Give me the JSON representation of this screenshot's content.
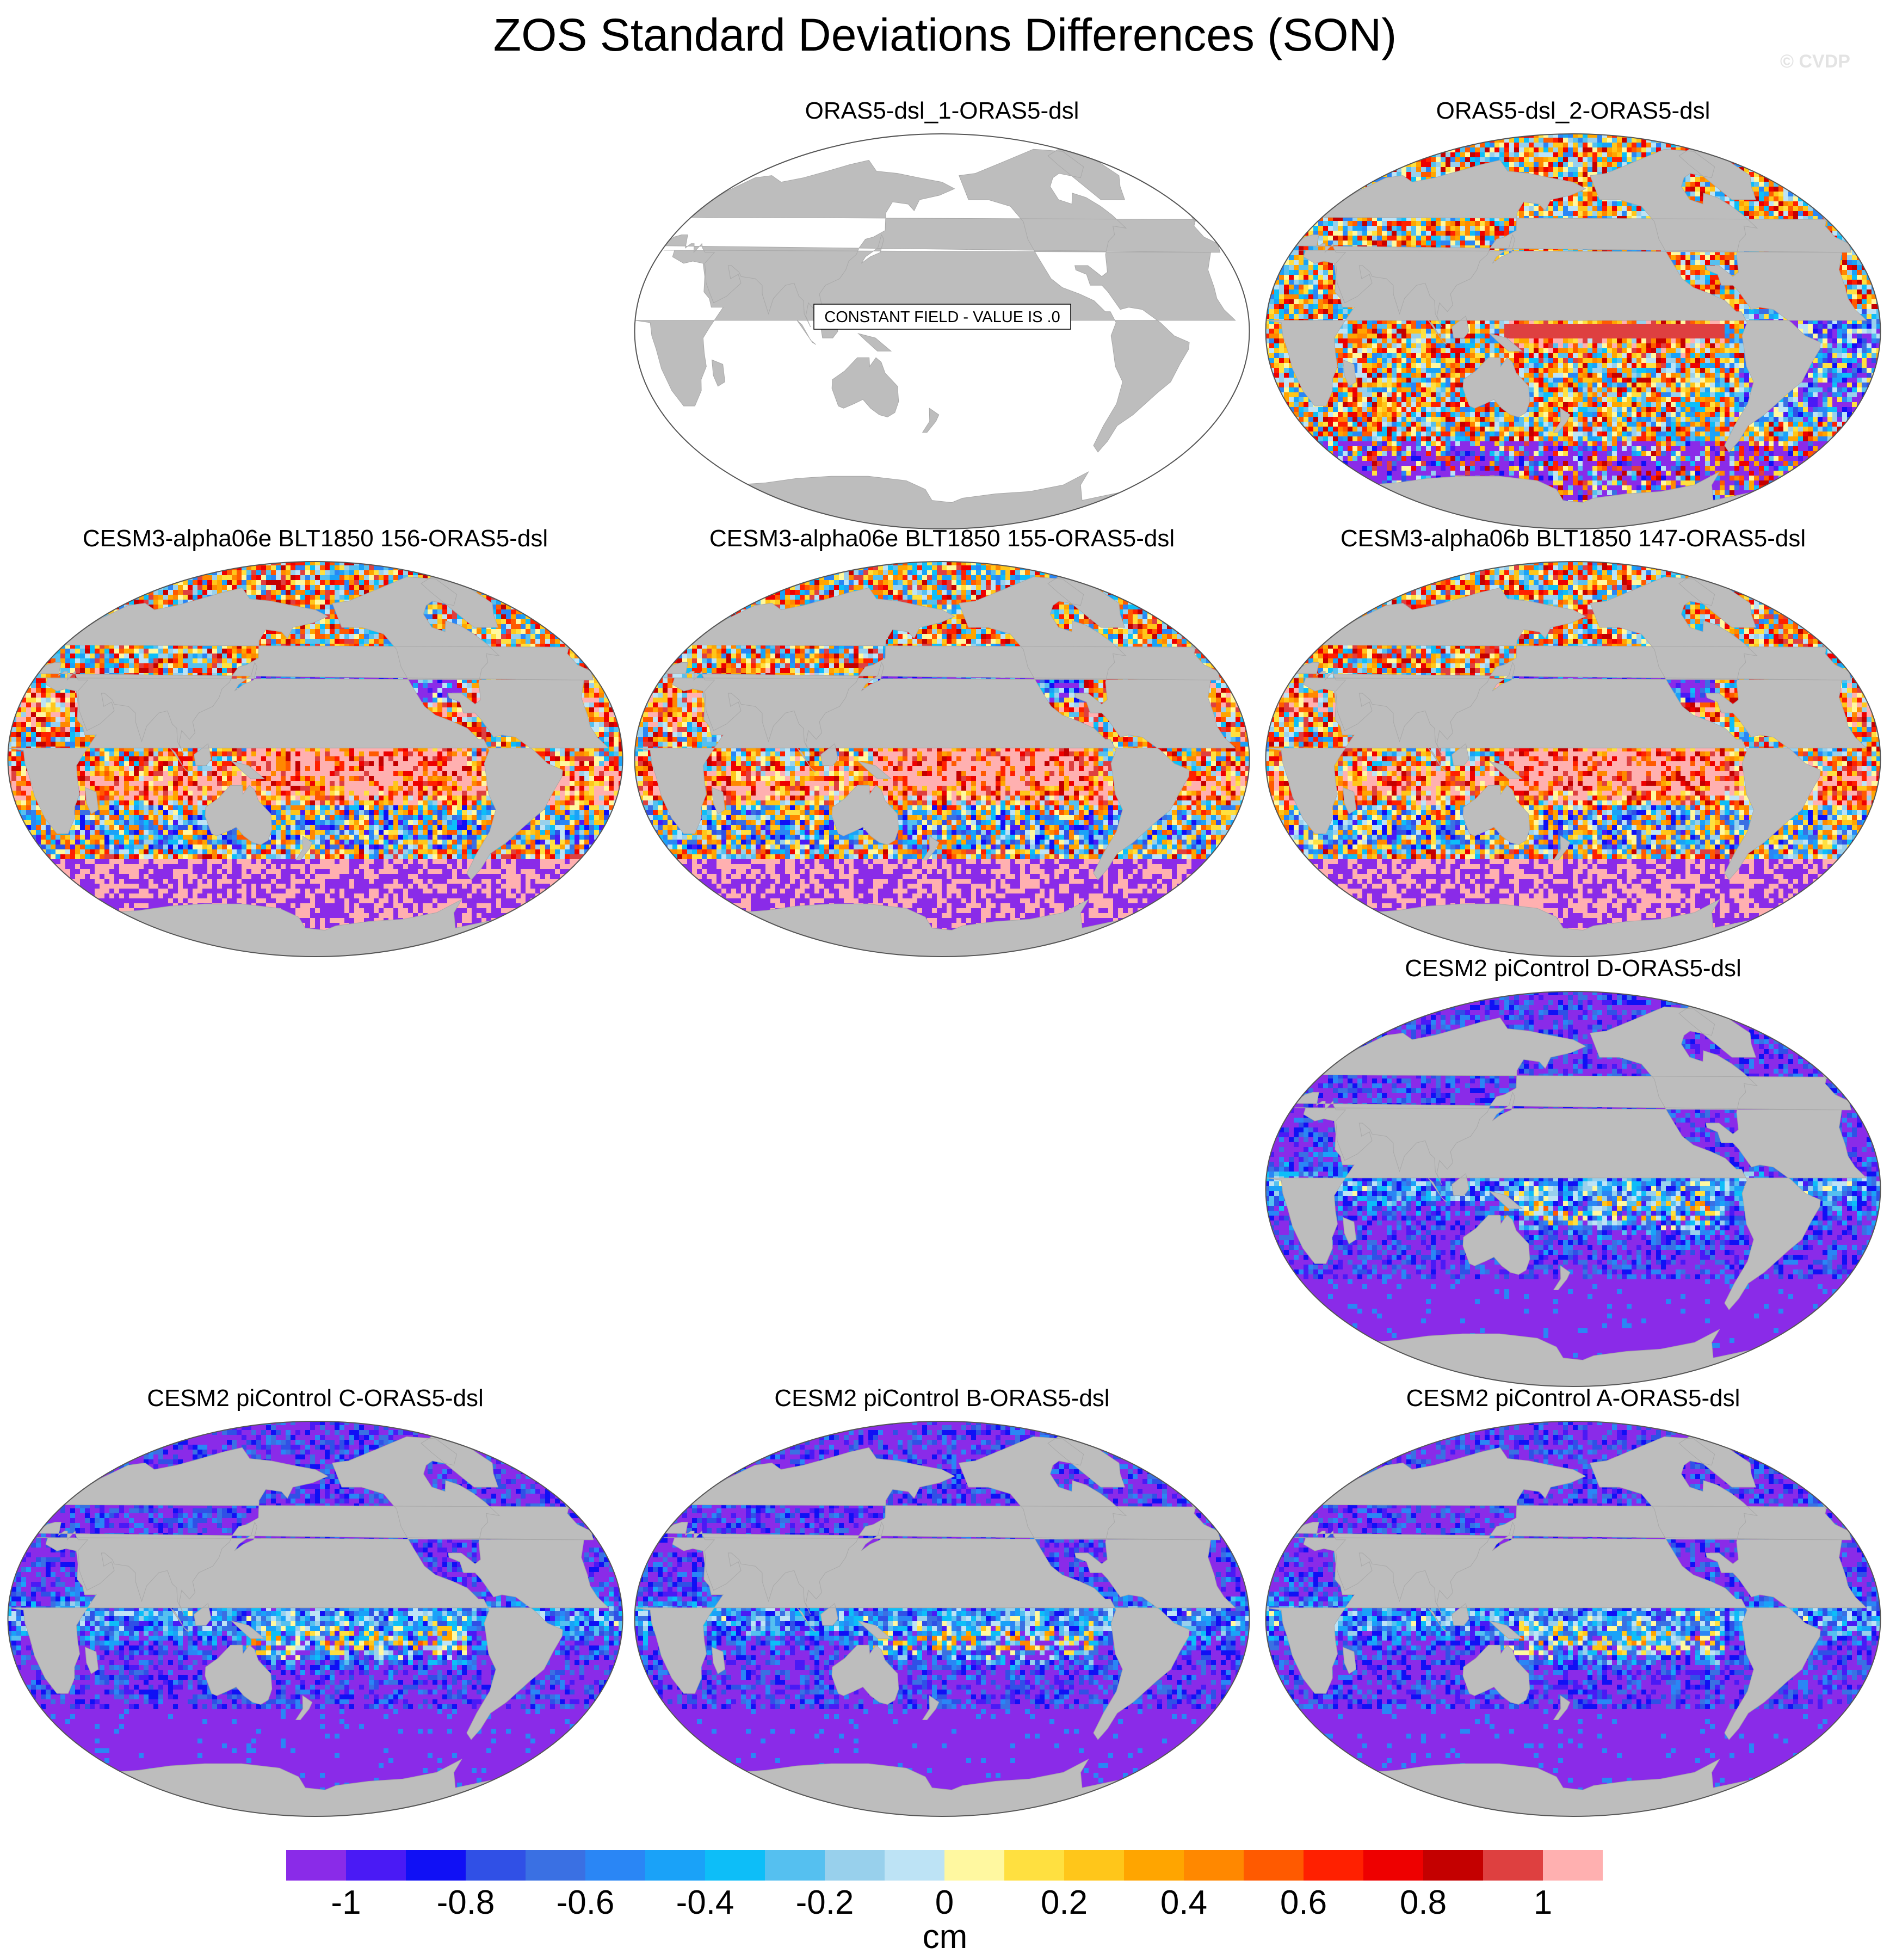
{
  "title": "ZOS Standard Deviations Differences (SON)",
  "watermark": "© CVDP",
  "panels": [
    {
      "title": "ORAS5-dsl_1-ORAS5-dsl",
      "field": "constant",
      "note": "CONSTANT FIELD - VALUE IS .0"
    },
    {
      "title": "ORAS5-dsl_2-ORAS5-dsl",
      "field": "mixed"
    },
    {
      "title": "CESM3-alpha06e BLT1850 156-ORAS5-dsl",
      "field": "positive"
    },
    {
      "title": "CESM3-alpha06e BLT1850 155-ORAS5-dsl",
      "field": "positive"
    },
    {
      "title": "CESM3-alpha06b BLT1850 147-ORAS5-dsl",
      "field": "positive"
    },
    {
      "title": "CESM2 piControl D-ORAS5-dsl",
      "field": "negative"
    },
    {
      "title": "CESM2 piControl C-ORAS5-dsl",
      "field": "negative"
    },
    {
      "title": "CESM2 piControl B-ORAS5-dsl",
      "field": "negative"
    },
    {
      "title": "CESM2 piControl A-ORAS5-dsl",
      "field": "negative"
    }
  ],
  "colorbar": {
    "units": "cm",
    "labels": [
      "-1",
      "-0.8",
      "-0.6",
      "-0.4",
      "-0.2",
      "0",
      "0.2",
      "0.4",
      "0.6",
      "0.8",
      "1"
    ],
    "colors": [
      "#8a2be8",
      "#4a1af5",
      "#1010f5",
      "#3050e6",
      "#3a70e3",
      "#2a86f5",
      "#1aa2f8",
      "#0dbef8",
      "#55c0f0",
      "#98d0ec",
      "#bde3f5",
      "#fff8a0",
      "#ffe040",
      "#ffc61a",
      "#ffa500",
      "#ff8800",
      "#ff5a00",
      "#ff2000",
      "#ee0000",
      "#c40000",
      "#de4040",
      "#ffb0b0"
    ]
  },
  "map_colors": {
    "ocean_const": "#ffffff",
    "land": "#bdbdbd",
    "mask": "#f6f6f6"
  }
}
